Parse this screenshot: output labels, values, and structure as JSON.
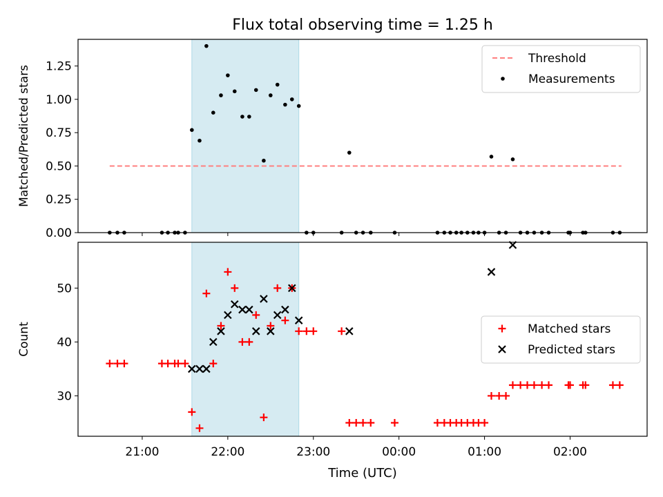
{
  "chart_data": {
    "title": "Flux total observing time = 1.25 h",
    "xlabel": "Time (UTC)",
    "x_unit": "hours UTC (values >= 24 are after midnight)",
    "xlim": [
      20.25,
      26.9
    ],
    "x_ticks": [
      {
        "value": 21,
        "label": "21:00"
      },
      {
        "value": 22,
        "label": "22:00"
      },
      {
        "value": 23,
        "label": "23:00"
      },
      {
        "value": 24,
        "label": "00:00"
      },
      {
        "value": 25,
        "label": "01:00"
      },
      {
        "value": 26,
        "label": "02:00"
      }
    ],
    "shaded_interval": {
      "start": 21.58,
      "end": 22.83,
      "color": "#add8e6"
    },
    "panels": [
      {
        "type": "scatter",
        "ylabel": "Matched/Predicted stars",
        "ylim": [
          0,
          1.45
        ],
        "yticks": [
          "0.00",
          "0.25",
          "0.50",
          "0.75",
          "1.00",
          "1.25"
        ],
        "legend_position": "upper right",
        "series": [
          {
            "name": "Threshold",
            "style": "dashed-line",
            "color": "#ff7f7f",
            "x": [
              20.62,
              26.6
            ],
            "y": [
              0.5,
              0.5
            ]
          },
          {
            "name": "Measurements",
            "style": "dot",
            "color": "#000000",
            "x": [
              20.62,
              20.71,
              20.79,
              21.23,
              21.3,
              21.38,
              21.42,
              21.5,
              21.58,
              21.67,
              21.75,
              21.83,
              21.92,
              22.0,
              22.08,
              22.17,
              22.25,
              22.33,
              22.42,
              22.5,
              22.58,
              22.67,
              22.75,
              22.83,
              22.92,
              23.0,
              23.33,
              23.42,
              23.5,
              23.58,
              23.67,
              23.95,
              24.45,
              24.53,
              24.6,
              24.67,
              24.73,
              24.8,
              24.87,
              24.93,
              25.0,
              25.08,
              25.17,
              25.25,
              25.33,
              25.42,
              25.5,
              25.58,
              25.67,
              25.75,
              25.98,
              26.0,
              26.15,
              26.18,
              26.5,
              26.58
            ],
            "y": [
              0,
              0,
              0,
              0,
              0,
              0,
              0,
              0,
              0.77,
              0.69,
              1.4,
              0.9,
              1.03,
              1.18,
              1.06,
              0.87,
              0.87,
              1.07,
              0.54,
              1.03,
              1.11,
              0.96,
              1.0,
              0.95,
              0,
              0,
              0,
              0.6,
              0,
              0,
              0,
              0,
              0,
              0,
              0,
              0,
              0,
              0,
              0,
              0,
              0,
              0.57,
              0,
              0,
              0.55,
              0,
              0,
              0,
              0,
              0,
              0,
              0,
              0,
              0,
              0,
              0
            ]
          }
        ]
      },
      {
        "type": "scatter",
        "ylabel": "Count",
        "ylim": [
          22.5,
          58.5
        ],
        "yticks": [
          "30",
          "40",
          "50"
        ],
        "legend_position": "center right",
        "series": [
          {
            "name": "Matched stars",
            "style": "plus",
            "color": "#ff0000",
            "x": [
              20.62,
              20.71,
              20.79,
              21.23,
              21.3,
              21.38,
              21.42,
              21.5,
              21.58,
              21.67,
              21.75,
              21.83,
              21.92,
              22.0,
              22.08,
              22.17,
              22.25,
              22.33,
              22.42,
              22.5,
              22.58,
              22.67,
              22.75,
              22.83,
              22.92,
              23.0,
              23.33,
              23.42,
              23.5,
              23.58,
              23.67,
              23.95,
              24.45,
              24.53,
              24.6,
              24.67,
              24.73,
              24.8,
              24.87,
              24.93,
              25.0,
              25.08,
              25.17,
              25.25,
              25.33,
              25.42,
              25.5,
              25.58,
              25.67,
              25.75,
              25.98,
              26.0,
              26.15,
              26.18,
              26.5,
              26.58
            ],
            "y": [
              36,
              36,
              36,
              36,
              36,
              36,
              36,
              36,
              27,
              24,
              49,
              36,
              43,
              53,
              50,
              40,
              40,
              45,
              26,
              43,
              50,
              44,
              50,
              42,
              42,
              42,
              42,
              25,
              25,
              25,
              25,
              25,
              25,
              25,
              25,
              25,
              25,
              25,
              25,
              25,
              25,
              30,
              30,
              30,
              32,
              32,
              32,
              32,
              32,
              32,
              32,
              32,
              32,
              32,
              32,
              32
            ]
          },
          {
            "name": "Predicted stars",
            "style": "x",
            "color": "#000000",
            "x": [
              21.58,
              21.67,
              21.75,
              21.83,
              21.92,
              22.0,
              22.08,
              22.17,
              22.25,
              22.33,
              22.42,
              22.5,
              22.58,
              22.67,
              22.75,
              22.83,
              23.42,
              25.08,
              25.33
            ],
            "y": [
              35,
              35,
              35,
              40,
              42,
              45,
              47,
              46,
              46,
              42,
              48,
              42,
              45,
              46,
              50,
              44,
              42,
              53,
              58
            ]
          }
        ]
      }
    ]
  }
}
